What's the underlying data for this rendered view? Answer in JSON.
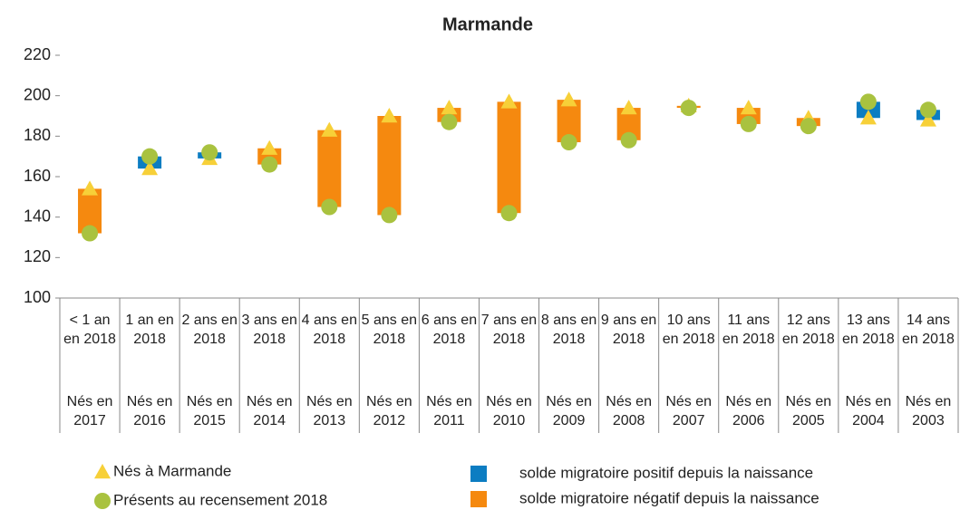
{
  "chart_data": {
    "type": "range_dot",
    "title": "Marmande",
    "categories": [
      "< 1 an en 2018",
      "1 an en 2018",
      "2 ans en 2018",
      "3 ans en 2018",
      "4 ans en 2018",
      "5 ans en 2018",
      "6 ans en 2018",
      "7 ans en 2018",
      "8 ans en 2018",
      "9 ans en 2018",
      "10 ans en 2018",
      "11 ans en 2018",
      "12 ans en 2018",
      "13 ans en 2018",
      "14 ans en 2018"
    ],
    "categories2": [
      "Nés en 2017",
      "Nés en 2016",
      "Nés en 2015",
      "Nés en 2014",
      "Nés en 2013",
      "Nés en 2012",
      "Nés en 2011",
      "Nés en 2010",
      "Nés en 2009",
      "Nés en 2008",
      "Nés en 2007",
      "Nés en 2006",
      "Nés en 2005",
      "Nés en 2004",
      "Nés en 2003"
    ],
    "series": [
      {
        "name": "Nés à Marmande",
        "color": "#f7d038",
        "marker": "triangle",
        "values": [
          154,
          164,
          169,
          174,
          183,
          190,
          194,
          197,
          198,
          194,
          195,
          194,
          189,
          189,
          188
        ]
      },
      {
        "name": "Présents au recensement 2018",
        "color": "#a9c23f",
        "marker": "circle",
        "values": [
          132,
          170,
          172,
          166,
          145,
          141,
          187,
          142,
          177,
          178,
          194,
          186,
          185,
          197,
          193
        ]
      }
    ],
    "range_legend": [
      {
        "name": "solde migratoire positif depuis la naissance",
        "color": "#0c7dc2"
      },
      {
        "name": "solde migratoire négatif depuis la naissance",
        "color": "#f5890f"
      }
    ],
    "ylim": [
      100,
      220
    ],
    "yticks": [
      100,
      120,
      140,
      160,
      180,
      200,
      220
    ],
    "grid": false
  }
}
